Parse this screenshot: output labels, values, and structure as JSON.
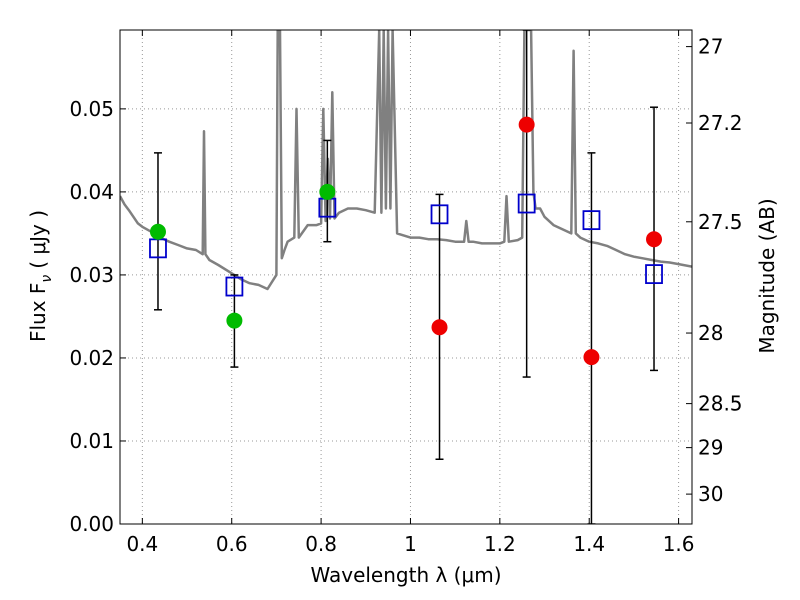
{
  "chart_data": {
    "type": "scatter",
    "xlabel": "Wavelength  λ (μm)",
    "ylabel": "Flux  F",
    "ylabel_sub": "ν",
    "ylabel_unit": "(  μJy )",
    "y2label": "Magnitude (AB)",
    "xlim": [
      0.35,
      1.63
    ],
    "ylim": [
      0.0,
      0.0595
    ],
    "grid": true,
    "x_ticks": [
      0.4,
      0.6,
      0.8,
      1.0,
      1.2,
      1.4,
      1.6
    ],
    "x_tick_labels": [
      "0.4",
      "0.6",
      "0.8",
      "1",
      "1.2",
      "1.4",
      "1.6"
    ],
    "y_ticks": [
      0.0,
      0.01,
      0.02,
      0.03,
      0.04,
      0.05
    ],
    "y_tick_labels": [
      "0.00",
      "0.01",
      "0.02",
      "0.03",
      "0.04",
      "0.05"
    ],
    "y2_ticks": [
      {
        "label": "27",
        "flux": 0.0575
      },
      {
        "label": "27.2",
        "flux": 0.0483
      },
      {
        "label": "27.5",
        "flux": 0.0364
      },
      {
        "label": "28",
        "flux": 0.023
      },
      {
        "label": "28.5",
        "flux": 0.0145
      },
      {
        "label": "29",
        "flux": 0.0092
      },
      {
        "label": "30",
        "flux": 0.0036
      }
    ],
    "colors": {
      "model": "#808080",
      "observed_green": "#00bb00",
      "observed_red": "#ee0000",
      "model_photometry": "#0000cc",
      "errorbar": "#000000",
      "grid": "#999999"
    },
    "series": [
      {
        "kind": "model_photometry",
        "points": [
          {
            "x": 0.435,
            "y": 0.0332
          },
          {
            "x": 0.606,
            "y": 0.0286
          },
          {
            "x": 0.814,
            "y": 0.0381
          },
          {
            "x": 1.065,
            "y": 0.0373
          },
          {
            "x": 1.26,
            "y": 0.0386
          },
          {
            "x": 1.405,
            "y": 0.0366
          },
          {
            "x": 1.545,
            "y": 0.0301
          }
        ]
      },
      {
        "kind": "observed_green",
        "points": [
          {
            "x": 0.435,
            "y": 0.0352,
            "err_lo": 0.0258,
            "err_hi": 0.0447
          },
          {
            "x": 0.606,
            "y": 0.0245,
            "err_lo": 0.0189,
            "err_hi": 0.03
          },
          {
            "x": 0.814,
            "y": 0.04,
            "err_lo": 0.034,
            "err_hi": 0.0462
          }
        ]
      },
      {
        "kind": "observed_red",
        "points": [
          {
            "x": 1.065,
            "y": 0.0237,
            "err_lo": 0.0078,
            "err_hi": 0.0397
          },
          {
            "x": 1.26,
            "y": 0.0481,
            "err_lo": 0.0177,
            "err_hi": 0.0595
          },
          {
            "x": 1.405,
            "y": 0.0201,
            "err_lo": 0.0,
            "err_hi": 0.0447
          },
          {
            "x": 1.545,
            "y": 0.0343,
            "err_lo": 0.0185,
            "err_hi": 0.0502
          }
        ]
      },
      {
        "kind": "model_spectrum",
        "x": [
          0.35,
          0.36,
          0.37,
          0.38,
          0.39,
          0.4,
          0.42,
          0.44,
          0.46,
          0.48,
          0.5,
          0.52,
          0.535,
          0.538,
          0.541,
          0.55,
          0.57,
          0.6,
          0.62,
          0.64,
          0.66,
          0.68,
          0.7,
          0.703,
          0.708,
          0.712,
          0.718,
          0.725,
          0.74,
          0.745,
          0.75,
          0.77,
          0.79,
          0.8,
          0.805,
          0.81,
          0.815,
          0.82,
          0.825,
          0.83,
          0.84,
          0.86,
          0.88,
          0.9,
          0.92,
          0.93,
          0.935,
          0.94,
          0.945,
          0.95,
          0.955,
          0.96,
          0.97,
          1.0,
          1.02,
          1.04,
          1.06,
          1.08,
          1.1,
          1.12,
          1.125,
          1.13,
          1.14,
          1.16,
          1.18,
          1.2,
          1.21,
          1.215,
          1.22,
          1.24,
          1.25,
          1.255,
          1.26,
          1.27,
          1.275,
          1.28,
          1.29,
          1.3,
          1.32,
          1.34,
          1.36,
          1.365,
          1.37,
          1.38,
          1.4,
          1.42,
          1.44,
          1.46,
          1.48,
          1.5,
          1.52,
          1.54,
          1.56,
          1.58,
          1.6,
          1.63
        ],
        "y": [
          0.0395,
          0.0385,
          0.0378,
          0.037,
          0.0362,
          0.0358,
          0.0352,
          0.0345,
          0.034,
          0.0336,
          0.0332,
          0.033,
          0.0325,
          0.0473,
          0.0325,
          0.0318,
          0.0312,
          0.0302,
          0.0295,
          0.029,
          0.0288,
          0.0283,
          0.03,
          0.0595,
          0.0595,
          0.032,
          0.033,
          0.034,
          0.0345,
          0.05,
          0.0345,
          0.036,
          0.036,
          0.0362,
          0.05,
          0.0365,
          0.044,
          0.0368,
          0.052,
          0.0368,
          0.0375,
          0.038,
          0.038,
          0.0378,
          0.0375,
          0.0595,
          0.0375,
          0.0595,
          0.038,
          0.0595,
          0.038,
          0.0595,
          0.035,
          0.0345,
          0.0345,
          0.0343,
          0.0343,
          0.0342,
          0.034,
          0.034,
          0.0365,
          0.034,
          0.034,
          0.0338,
          0.0338,
          0.0338,
          0.034,
          0.0395,
          0.034,
          0.0342,
          0.0345,
          0.0595,
          0.0595,
          0.0595,
          0.04,
          0.038,
          0.038,
          0.037,
          0.036,
          0.0355,
          0.035,
          0.057,
          0.035,
          0.0345,
          0.034,
          0.0338,
          0.0335,
          0.033,
          0.0325,
          0.0322,
          0.032,
          0.0318,
          0.0316,
          0.0315,
          0.0313,
          0.031
        ]
      }
    ]
  }
}
